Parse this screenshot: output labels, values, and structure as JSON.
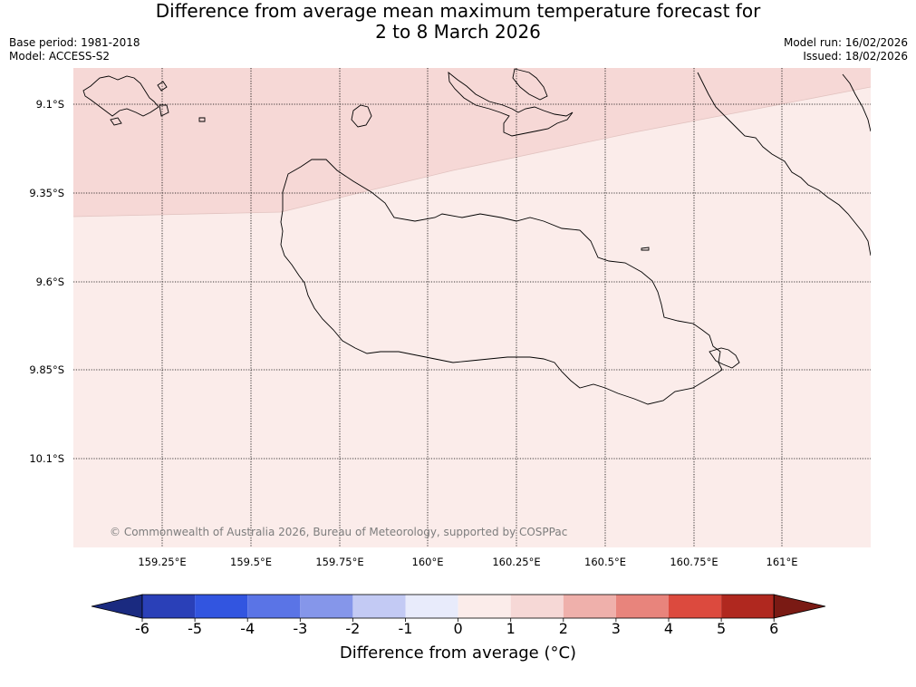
{
  "header": {
    "title_line1": "Difference from average mean maximum temperature forecast for",
    "title_line2": "2 to 8 March 2026",
    "base_period": "Base period: 1981-2018",
    "model": "Model: ACCESS-S2",
    "model_run": "Model run: 16/02/2026",
    "issued": "Issued: 18/02/2026"
  },
  "map": {
    "lat_labels": [
      "9.1°S",
      "9.35°S",
      "9.6°S",
      "9.85°S",
      "10.1°S"
    ],
    "lon_labels": [
      "159.25°E",
      "159.5°E",
      "159.75°E",
      "160°E",
      "160.25°E",
      "160.5°E",
      "160.75°E",
      "161°E"
    ],
    "copyright": "© Commonwealth of Australia 2026, Bureau of Meteorology, supported by COSPPac",
    "zone_colors": {
      "anom_1_2": "#f6d8d6",
      "anom_0_1": "#fbecea"
    }
  },
  "colorbar": {
    "ticks": [
      "-6",
      "-5",
      "-4",
      "-3",
      "-2",
      "-1",
      "0",
      "1",
      "2",
      "3",
      "4",
      "5",
      "6"
    ],
    "colors": [
      "#1a2a80",
      "#2a40b8",
      "#3255e0",
      "#5a74e6",
      "#8596ea",
      "#c3caf4",
      "#e8ebfb",
      "#fbecea",
      "#f6d8d6",
      "#efb0ab",
      "#e8847c",
      "#dc4a3e",
      "#b0281f",
      "#7a1a14"
    ],
    "label": "Difference from average (°C)"
  }
}
